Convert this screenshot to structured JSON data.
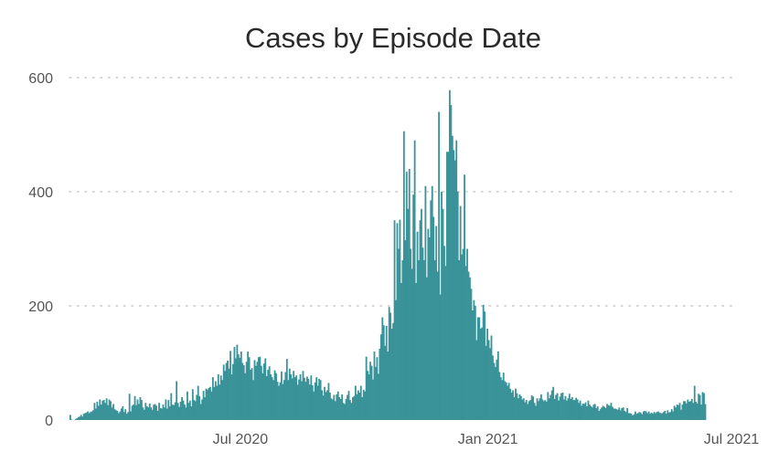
{
  "chart_data": {
    "type": "bar",
    "title": "Cases by Episode Date",
    "xlabel": "",
    "ylabel": "",
    "ylim": [
      0,
      600
    ],
    "grid": "horizontal-dotted",
    "legend": "none",
    "bar_color": "#3a9399",
    "x_range": [
      "2020-02-25",
      "2021-07-01"
    ],
    "y_ticks": [
      {
        "value": 0,
        "label": "0"
      },
      {
        "value": 200,
        "label": "200"
      },
      {
        "value": 400,
        "label": "400"
      },
      {
        "value": 600,
        "label": "600"
      }
    ],
    "x_ticks": [
      {
        "date": "2020-07-01",
        "label": "Jul 2020"
      },
      {
        "date": "2021-01-01",
        "label": "Jan 2021"
      },
      {
        "date": "2021-07-01",
        "label": "Jul 2021"
      }
    ],
    "series": [
      {
        "values_start_date": "2020-02-25",
        "values_interval": "1 day",
        "values": [
          9,
          1,
          0,
          0,
          2,
          3,
          5,
          6,
          9,
          6,
          11,
          12,
          13,
          15,
          12,
          14,
          15,
          17,
          30,
          20,
          32,
          25,
          36,
          27,
          34,
          35,
          30,
          38,
          26,
          36,
          33,
          22,
          28,
          19,
          17,
          16,
          12,
          15,
          20,
          24,
          14,
          19,
          11,
          14,
          46,
          15,
          25,
          27,
          42,
          26,
          36,
          28,
          40,
          35,
          22,
          18,
          30,
          24,
          22,
          29,
          22,
          18,
          27,
          28,
          25,
          16,
          30,
          21,
          20,
          27,
          22,
          36,
          20,
          35,
          24,
          47,
          27,
          26,
          31,
          68,
          30,
          23,
          32,
          40,
          34,
          27,
          22,
          50,
          30,
          34,
          24,
          54,
          35,
          33,
          44,
          60,
          42,
          28,
          36,
          51,
          40,
          55,
          53,
          56,
          58,
          50,
          75,
          58,
          68,
          60,
          80,
          62,
          78,
          70,
          97,
          86,
          100,
          104,
          90,
          121,
          80,
          98,
          128,
          108,
          132,
          115,
          109,
          120,
          100,
          96,
          82,
          102,
          120,
          110,
          88,
          91,
          70,
          105,
          95,
          102,
          110,
          111,
          95,
          82,
          99,
          108,
          77,
          88,
          94,
          80,
          75,
          70,
          87,
          82,
          67,
          60,
          66,
          85,
          63,
          70,
          84,
          107,
          70,
          90,
          80,
          73,
          86,
          75,
          78,
          62,
          71,
          80,
          68,
          86,
          74,
          67,
          76,
          72,
          62,
          78,
          61,
          50,
          66,
          75,
          60,
          72,
          70,
          52,
          43,
          58,
          49,
          52,
          65,
          48,
          38,
          36,
          44,
          33,
          45,
          50,
          40,
          37,
          45,
          30,
          28,
          37,
          44,
          51,
          35,
          30,
          40,
          42,
          60,
          45,
          52,
          48,
          60,
          40,
          53,
          50,
          111,
          86,
          80,
          102,
          95,
          71,
          120,
          93,
          110,
          81,
          125,
          150,
          180,
          166,
          130,
          165,
          120,
          198,
          188,
          160,
          170,
          350,
          210,
          345,
          300,
          351,
          240,
          280,
          506,
          315,
          435,
          370,
          440,
          300,
          265,
          395,
          490,
          240,
          330,
          280,
          350,
          370,
          302,
          280,
          410,
          250,
          335,
          320,
          385,
          410,
          356,
          280,
          340,
          260,
          540,
          220,
          400,
          370,
          305,
          270,
          470,
          470,
          578,
          552,
          498,
          473,
          455,
          490,
          400,
          280,
          375,
          290,
          300,
          430,
          270,
          300,
          260,
          250,
          230,
          192,
          210,
          200,
          140,
          180,
          180,
          160,
          162,
          202,
          190,
          130,
          160,
          140,
          126,
          148,
          113,
          100,
          93,
          106,
          120,
          84,
          75,
          70,
          83,
          68,
          66,
          60,
          65,
          55,
          48,
          52,
          40,
          55,
          47,
          38,
          45,
          42,
          36,
          38,
          31,
          35,
          28,
          33,
          35,
          43,
          41,
          30,
          25,
          38,
          33,
          38,
          45,
          36,
          33,
          35,
          32,
          49,
          38,
          44,
          52,
          58,
          37,
          44,
          47,
          34,
          41,
          47,
          48,
          36,
          42,
          34,
          38,
          46,
          37,
          40,
          35,
          35,
          39,
          36,
          30,
          34,
          25,
          29,
          28,
          31,
          24,
          34,
          27,
          24,
          22,
          27,
          28,
          21,
          24,
          16,
          19,
          22,
          25,
          23,
          21,
          28,
          26,
          25,
          30,
          23,
          20,
          20,
          19,
          18,
          22,
          17,
          21,
          22,
          16,
          14,
          21,
          12,
          12,
          11,
          8,
          10,
          15,
          11,
          12,
          14,
          13,
          10,
          15,
          16,
          15,
          12,
          15,
          11,
          13,
          11,
          14,
          12,
          14,
          15,
          13,
          12,
          12,
          14,
          16,
          11,
          17,
          13,
          14,
          19,
          15,
          25,
          22,
          27,
          26,
          30,
          18,
          27,
          33,
          33,
          29,
          36,
          32,
          33,
          37,
          30,
          60,
          32,
          29,
          46,
          44,
          27,
          49,
          47,
          28
        ]
      }
    ]
  }
}
